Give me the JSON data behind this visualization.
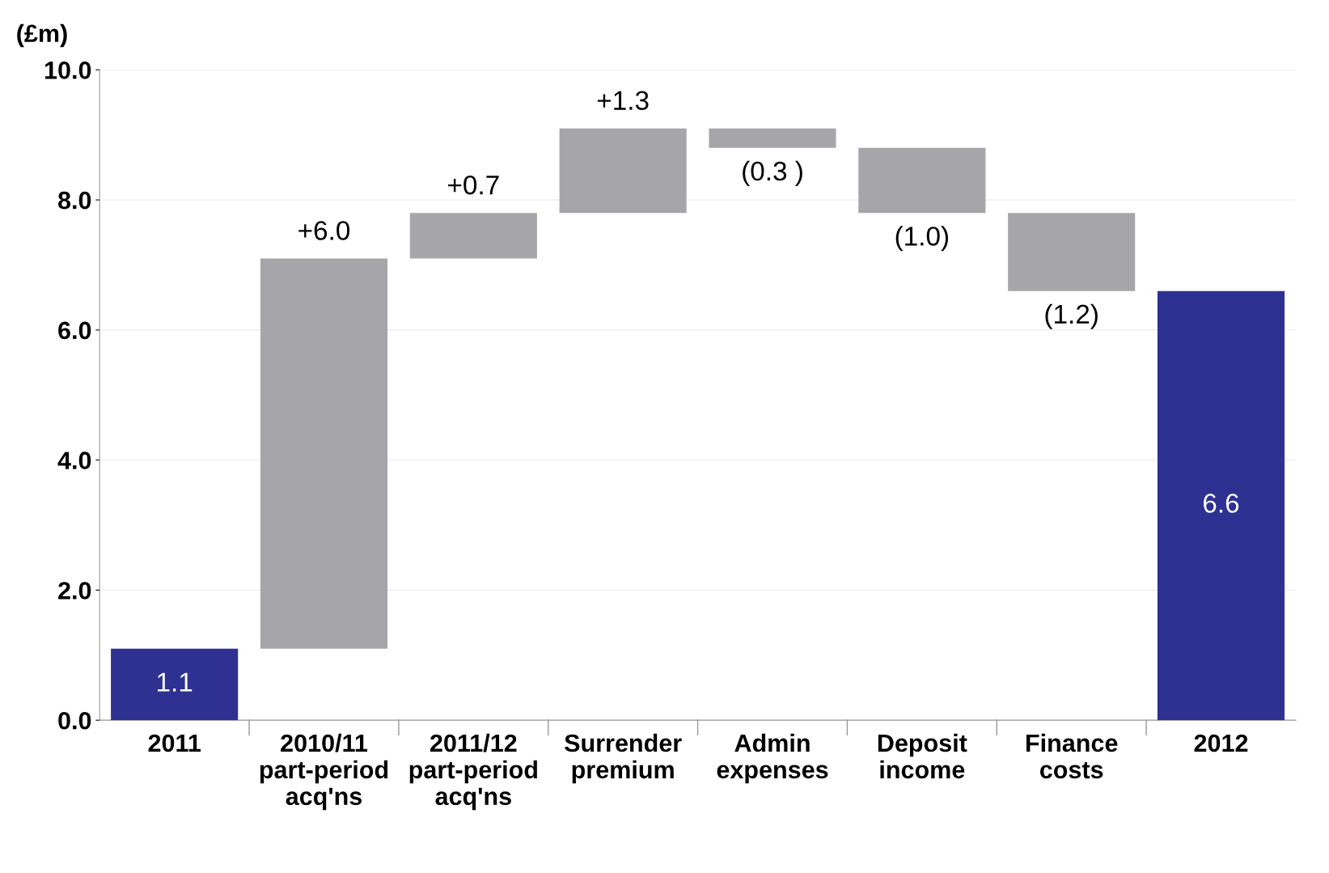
{
  "chart_data": {
    "type": "bar",
    "ylabel": "(£m)",
    "categories": [
      "2011",
      "2010/11\npart-period\nacq'ns",
      "2011/12\npart-period\nacq'ns",
      "Surrender\npremium",
      "Admin\nexpenses",
      "Deposit\nincome",
      "Finance\ncosts",
      "2012"
    ],
    "values": [
      1.1,
      6.0,
      0.7,
      1.3,
      -0.3,
      -1.0,
      -1.2,
      6.6
    ],
    "base": [
      0,
      1.1,
      7.1,
      7.8,
      9.1,
      8.8,
      7.8,
      0
    ],
    "colors": [
      "#2e3192",
      "#a6a6aa",
      "#a6a6aa",
      "#a6a6aa",
      "#a6a6aa",
      "#a6a6aa",
      "#a6a6aa",
      "#2e3192"
    ],
    "value_labels": [
      "1.1",
      "+6.0",
      "+0.7",
      "+1.3",
      "(0.3 )",
      "(1.0)",
      "(1.2)",
      "6.6"
    ],
    "ylim": [
      0,
      10
    ],
    "yticks": [
      {
        "value": 0,
        "label": "0.0"
      },
      {
        "value": 2,
        "label": "2.0"
      },
      {
        "value": 4,
        "label": "4.0"
      },
      {
        "value": 6,
        "label": "6.0"
      },
      {
        "value": 8,
        "label": "8.0"
      },
      {
        "value": 10,
        "label": "10.0"
      }
    ],
    "grid": "y",
    "legend": false
  }
}
